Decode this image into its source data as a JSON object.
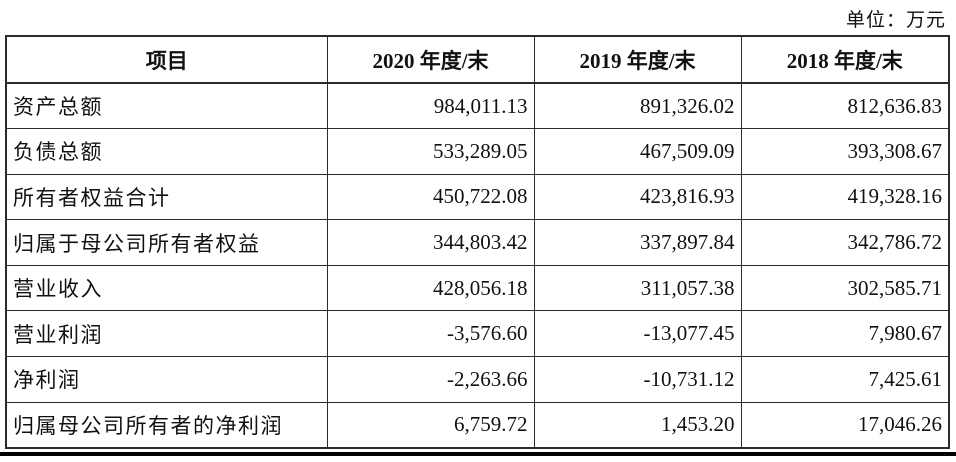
{
  "unit_label": "单位：万元",
  "table": {
    "columns": [
      "项目",
      "2020 年度/末",
      "2019 年度/末",
      "2018 年度/末"
    ],
    "rows": [
      {
        "label": "资产总额",
        "values": [
          "984,011.13",
          "891,326.02",
          "812,636.83"
        ]
      },
      {
        "label": "负债总额",
        "values": [
          "533,289.05",
          "467,509.09",
          "393,308.67"
        ]
      },
      {
        "label": "所有者权益合计",
        "values": [
          "450,722.08",
          "423,816.93",
          "419,328.16"
        ]
      },
      {
        "label": "归属于母公司所有者权益",
        "values": [
          "344,803.42",
          "337,897.84",
          "342,786.72"
        ]
      },
      {
        "label": "营业收入",
        "values": [
          "428,056.18",
          "311,057.38",
          "302,585.71"
        ]
      },
      {
        "label": "营业利润",
        "values": [
          "-3,576.60",
          "-13,077.45",
          "7,980.67"
        ]
      },
      {
        "label": "净利润",
        "values": [
          "-2,263.66",
          "-10,731.12",
          "7,425.61"
        ]
      },
      {
        "label": "归属母公司所有者的净利润",
        "values": [
          "6,759.72",
          "1,453.20",
          "17,046.26"
        ]
      }
    ]
  },
  "colors": {
    "border": "#2b2b2b",
    "text": "#111111",
    "background": "#ffffff",
    "bottom_rule": "#000000"
  }
}
